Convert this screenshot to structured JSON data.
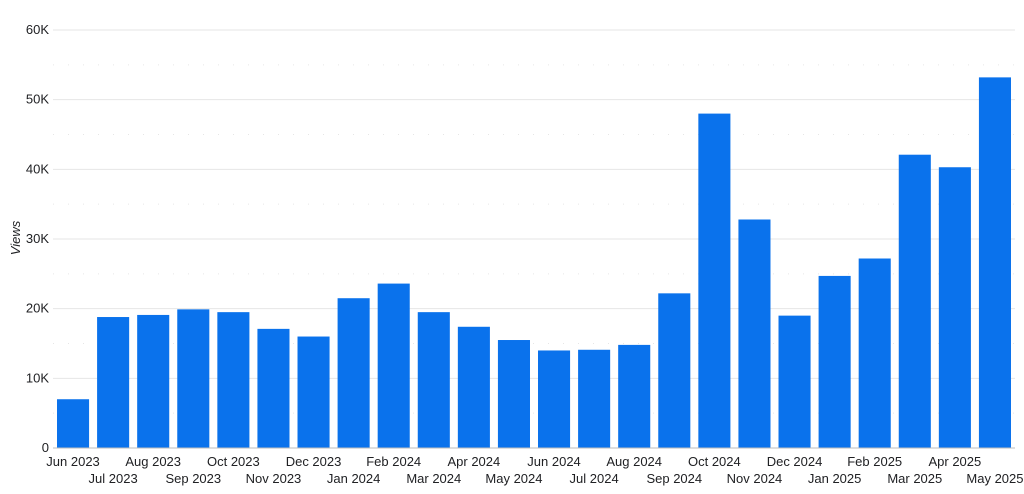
{
  "chart_data": {
    "type": "bar",
    "title": "",
    "xlabel": "",
    "ylabel": "Views",
    "ylim": [
      0,
      60000
    ],
    "y_ticks": [
      0,
      10000,
      20000,
      30000,
      40000,
      50000,
      60000
    ],
    "y_tick_labels": [
      "0",
      "10K",
      "20K",
      "30K",
      "40K",
      "50K",
      "60K"
    ],
    "grid": true,
    "legend": "none",
    "bar_color": "#0a72ec",
    "categories": [
      "Jun 2023",
      "Jul 2023",
      "Aug 2023",
      "Sep 2023",
      "Oct 2023",
      "Nov 2023",
      "Dec 2023",
      "Jan 2024",
      "Feb 2024",
      "Mar 2024",
      "Apr 2024",
      "May 2024",
      "Jun 2024",
      "Jul 2024",
      "Aug 2024",
      "Sep 2024",
      "Oct 2024",
      "Nov 2024",
      "Dec 2024",
      "Jan 2025",
      "Feb 2025",
      "Mar 2025",
      "Apr 2025",
      "May 2025"
    ],
    "values": [
      7000,
      18800,
      19100,
      19900,
      19500,
      17100,
      16000,
      21500,
      23600,
      19500,
      17400,
      15500,
      14000,
      14100,
      14800,
      22200,
      48000,
      32800,
      19000,
      24700,
      27200,
      42100,
      40300,
      53200
    ]
  }
}
